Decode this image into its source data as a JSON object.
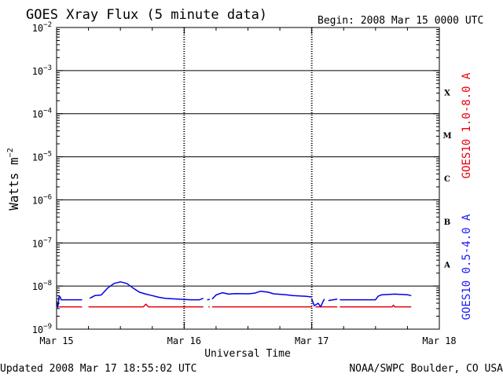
{
  "header": {
    "title": "GOES Xray Flux (5 minute data)",
    "begin": "Begin:  2008 Mar 15 0000 UTC"
  },
  "footer": {
    "updated": "Updated 2008 Mar 17 18:55:02 UTC",
    "source": "NOAA/SWPC Boulder, CO USA"
  },
  "chart_data": {
    "type": "line",
    "title": "GOES Xray Flux (5 minute data)",
    "xlabel": "Universal Time",
    "ylabel_text": "Watts m",
    "ylabel_sup": "−2",
    "yscale": "log",
    "ylim": [
      1e-09,
      0.01
    ],
    "y_ticks": [
      {
        "base": "10",
        "exp": "−2"
      },
      {
        "base": "10",
        "exp": "−3"
      },
      {
        "base": "10",
        "exp": "−4"
      },
      {
        "base": "10",
        "exp": "−5"
      },
      {
        "base": "10",
        "exp": "−6"
      },
      {
        "base": "10",
        "exp": "−7"
      },
      {
        "base": "10",
        "exp": "−8"
      },
      {
        "base": "10",
        "exp": "−9"
      }
    ],
    "x_unit": "days since 2008 Mar 15 0000 UTC",
    "xlim": [
      0,
      3
    ],
    "x_ticks": [
      "Mar 15",
      "Mar 16",
      "Mar 17",
      "Mar 18"
    ],
    "flare_classes": [
      {
        "label": "X",
        "low": 0.0001
      },
      {
        "label": "M",
        "low": 1e-05
      },
      {
        "label": "C",
        "low": 1e-06
      },
      {
        "label": "B",
        "low": 1e-07
      },
      {
        "label": "A",
        "low": 1e-08
      }
    ],
    "grid": true,
    "series": [
      {
        "name": "GOES10 1.0-8.0 A",
        "color": "#e8000b",
        "segments": [
          [
            [
              0.02,
              3.3e-09
            ],
            [
              0.2,
              3.3e-09
            ]
          ],
          [
            [
              0.25,
              3.3e-09
            ],
            [
              0.68,
              3.3e-09
            ],
            [
              0.7,
              3.8e-09
            ],
            [
              0.72,
              3.3e-09
            ],
            [
              1.15,
              3.3e-09
            ]
          ],
          [
            [
              1.19,
              3.3e-09
            ],
            [
              1.2,
              3.3e-09
            ]
          ],
          [
            [
              1.22,
              3.3e-09
            ],
            [
              2.0,
              3.3e-09
            ]
          ],
          [
            [
              2.03,
              3.3e-09
            ],
            [
              2.2,
              3.3e-09
            ]
          ],
          [
            [
              2.22,
              3.3e-09
            ],
            [
              2.63,
              3.3e-09
            ],
            [
              2.64,
              3.6e-09
            ],
            [
              2.65,
              3.3e-09
            ],
            [
              2.78,
              3.3e-09
            ]
          ]
        ]
      },
      {
        "name": "GOES10 0.5-4.0 A",
        "color": "#0000e6",
        "segments": [
          [
            [
              0.0,
              4.5e-09
            ],
            [
              0.01,
              3.2e-09
            ],
            [
              0.02,
              5.8e-09
            ],
            [
              0.03,
              5.5e-09
            ],
            [
              0.035,
              4.8e-09
            ],
            [
              0.2,
              4.8e-09
            ]
          ],
          [
            [
              0.26,
              5.2e-09
            ],
            [
              0.3,
              6e-09
            ],
            [
              0.35,
              6.2e-09
            ],
            [
              0.4,
              9e-09
            ],
            [
              0.45,
              1.15e-08
            ],
            [
              0.5,
              1.25e-08
            ],
            [
              0.55,
              1.15e-08
            ],
            [
              0.6,
              9e-09
            ],
            [
              0.65,
              7.2e-09
            ],
            [
              0.7,
              6.5e-09
            ],
            [
              0.75,
              6e-09
            ],
            [
              0.8,
              5.5e-09
            ],
            [
              0.85,
              5.2e-09
            ],
            [
              0.95,
              5e-09
            ],
            [
              1.05,
              4.8e-09
            ],
            [
              1.12,
              4.8e-09
            ],
            [
              1.15,
              5.2e-09
            ]
          ],
          [
            [
              1.18,
              4.8e-09
            ],
            [
              1.2,
              4.9e-09
            ]
          ],
          [
            [
              1.22,
              5e-09
            ],
            [
              1.25,
              6.2e-09
            ],
            [
              1.3,
              7e-09
            ],
            [
              1.35,
              6.5e-09
            ],
            [
              1.4,
              6.7e-09
            ],
            [
              1.5,
              6.6e-09
            ],
            [
              1.55,
              6.8e-09
            ],
            [
              1.6,
              7.6e-09
            ],
            [
              1.66,
              7.2e-09
            ],
            [
              1.7,
              6.6e-09
            ],
            [
              1.8,
              6.3e-09
            ],
            [
              1.85,
              6e-09
            ],
            [
              1.95,
              5.8e-09
            ],
            [
              2.0,
              5.6e-09
            ]
          ],
          [
            [
              2.0,
              5e-09
            ],
            [
              2.02,
              3.5e-09
            ],
            [
              2.05,
              4e-09
            ],
            [
              2.07,
              3.3e-09
            ],
            [
              2.09,
              4.5e-09
            ],
            [
              2.1,
              5e-09
            ]
          ],
          [
            [
              2.13,
              4.6e-09
            ],
            [
              2.2,
              5e-09
            ]
          ],
          [
            [
              2.22,
              4.8e-09
            ],
            [
              2.5,
              4.8e-09
            ],
            [
              2.52,
              5.8e-09
            ],
            [
              2.55,
              6.3e-09
            ],
            [
              2.65,
              6.5e-09
            ],
            [
              2.75,
              6.3e-09
            ],
            [
              2.78,
              6e-09
            ]
          ]
        ]
      }
    ]
  }
}
